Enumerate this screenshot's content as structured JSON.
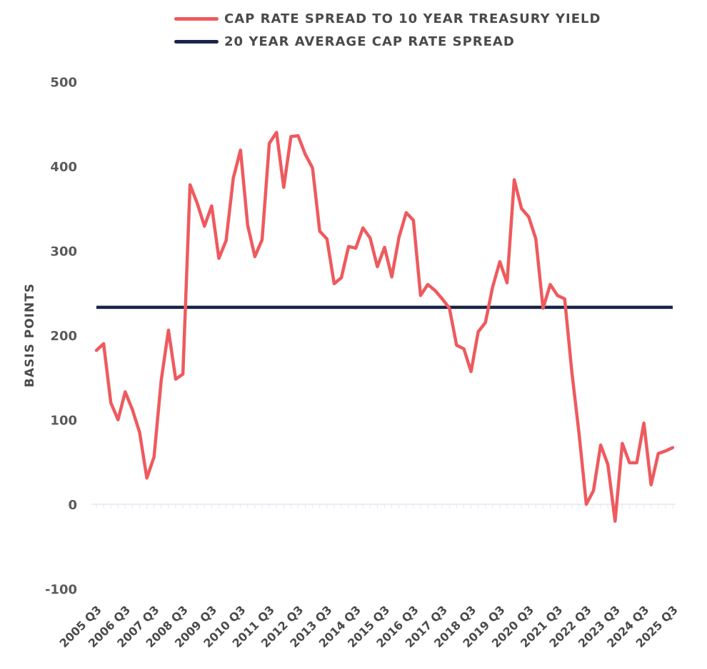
{
  "chart_data": {
    "type": "line",
    "title": "",
    "xlabel": "",
    "ylabel": "BASIS POINTS",
    "ylim": [
      -100,
      500
    ],
    "yticks": [
      500,
      400,
      300,
      200,
      100,
      0,
      -100
    ],
    "xticks": [
      "2005 Q3",
      "2006 Q3",
      "2007 Q3",
      "2008 Q3",
      "2009 Q3",
      "2010 Q3",
      "2011 Q3",
      "2012 Q3",
      "2013 Q3",
      "2014 Q3",
      "2015 Q3",
      "2016 Q3",
      "2017 Q3",
      "2018 Q3",
      "2019 Q3",
      "2020 Q3",
      "2021 Q3",
      "2022 Q3",
      "2023 Q3",
      "2024 Q3",
      "2025 Q3"
    ],
    "grid": false,
    "legend_position": "top",
    "series": [
      {
        "name": "CAP RATE SPREAD TO 10 YEAR TREASURY YIELD",
        "color": "#ee5a5e",
        "values": [
          182,
          190,
          120,
          100,
          133,
          112,
          85,
          31,
          56,
          147,
          206,
          148,
          154,
          378,
          356,
          329,
          353,
          291,
          312,
          386,
          419,
          330,
          293,
          313,
          427,
          440,
          375,
          435,
          436,
          414,
          398,
          323,
          314,
          261,
          268,
          305,
          303,
          327,
          315,
          281,
          304,
          269,
          316,
          345,
          336,
          247,
          260,
          253,
          243,
          232,
          188,
          184,
          157,
          204,
          215,
          257,
          287,
          262,
          384,
          350,
          340,
          314,
          232,
          260,
          247,
          243,
          156,
          83,
          0,
          16,
          70,
          47,
          -20,
          72,
          49,
          49,
          96,
          23,
          60,
          63,
          67
        ],
        "x_index": [
          0,
          1,
          2,
          3,
          4,
          5,
          6,
          7,
          8,
          9,
          10,
          11,
          12,
          13,
          14,
          15,
          16,
          17,
          18,
          19,
          20,
          21,
          22,
          23,
          24,
          25,
          26,
          27,
          28,
          29,
          30,
          31,
          32,
          33,
          34,
          35,
          36,
          37,
          38,
          39,
          40,
          41,
          42,
          43,
          44,
          45,
          46,
          47,
          48,
          49,
          50,
          51,
          52,
          53,
          54,
          55,
          56,
          57,
          58,
          59,
          60,
          61,
          62,
          63,
          64,
          65,
          66,
          67,
          68,
          69,
          70,
          71,
          72,
          73,
          74,
          75,
          76,
          77,
          78,
          79,
          80
        ]
      },
      {
        "name": "20 YEAR AVERAGE CAP RATE SPREAD",
        "color": "#1a2448",
        "values": [
          233,
          233
        ]
      }
    ]
  }
}
